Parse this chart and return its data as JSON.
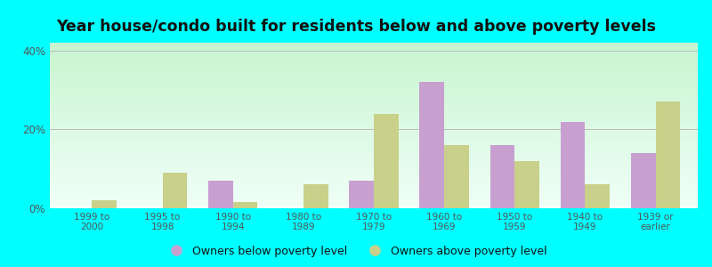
{
  "title": "Year house/condo built for residents below and above poverty levels",
  "categories": [
    "1999 to\n2000",
    "1995 to\n1998",
    "1990 to\n1994",
    "1980 to\n1989",
    "1970 to\n1979",
    "1960 to\n1969",
    "1950 to\n1959",
    "1940 to\n1949",
    "1939 or\nearlier"
  ],
  "below_poverty": [
    0,
    0,
    7.0,
    0,
    7.0,
    32.0,
    16.0,
    22.0,
    14.0
  ],
  "above_poverty": [
    2.0,
    9.0,
    1.5,
    6.0,
    24.0,
    16.0,
    12.0,
    6.0,
    27.0
  ],
  "below_color": "#c8a0d0",
  "above_color": "#c8d08a",
  "background_color": "#00ffff",
  "ylabel_ticks": [
    "0%",
    "20%",
    "40%"
  ],
  "ytick_values": [
    0,
    20,
    40
  ],
  "ylim": [
    0,
    42
  ],
  "legend_below": "Owners below poverty level",
  "legend_above": "Owners above poverty level",
  "title_fontsize": 12.5,
  "bar_width": 0.35,
  "grid_color": "#bbbbbb"
}
